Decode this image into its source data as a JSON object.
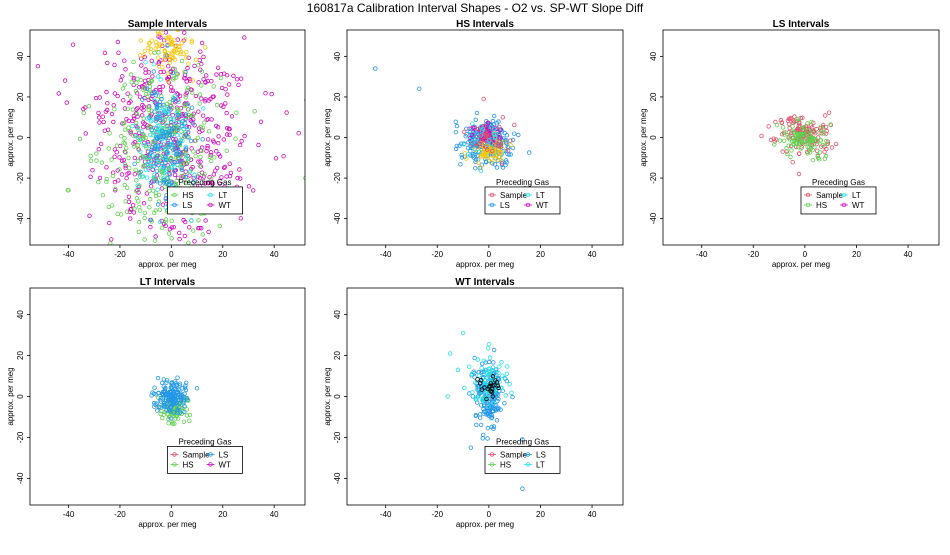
{
  "page_title": "160817a   Calibration Interval Shapes - O2 vs. SP-WT Slope Diff",
  "colors": {
    "Sample": "#df536b",
    "HS": "#61d04f",
    "LS": "#2297e6",
    "LT": "#28e2e5",
    "WT": "#cd0bbc",
    "yellow": "#f5c710",
    "black": "#000000"
  },
  "chart_data": [
    {
      "type": "scatter",
      "title": "Sample Intervals",
      "xlabel": "approx. per meg",
      "ylabel": "approx. per meg",
      "xlim": [
        -55,
        52
      ],
      "ylim": [
        -53,
        53
      ],
      "xticks": [
        "-40",
        "-20",
        "0",
        "20",
        "40"
      ],
      "yticks": [
        "-40",
        "-20",
        "0",
        "20",
        "40"
      ],
      "legend_title": "Preceding Gas",
      "legend": [
        "HS",
        "LT",
        "LS",
        "WT"
      ],
      "clouds": [
        {
          "series": "WT",
          "cx": 0,
          "cy": 0,
          "sx": 13,
          "sy": 24,
          "n": 450
        },
        {
          "series": "WT",
          "cx": 0,
          "cy": 0,
          "sx": 26,
          "sy": 26,
          "n": 90
        },
        {
          "series": "yellow",
          "cx": -1,
          "cy": 45,
          "sx": 5,
          "sy": 7,
          "n": 90
        },
        {
          "series": "HS",
          "cx": -3,
          "cy": -8,
          "sx": 9,
          "sy": 22,
          "n": 300
        },
        {
          "series": "HS",
          "cx": 0,
          "cy": -5,
          "sx": 24,
          "sy": 24,
          "n": 40
        },
        {
          "series": "LT",
          "cx": -3,
          "cy": 0,
          "sx": 5,
          "sy": 16,
          "n": 140
        },
        {
          "series": "LS",
          "cx": -2,
          "cy": -2,
          "sx": 5,
          "sy": 16,
          "n": 110
        }
      ]
    },
    {
      "type": "scatter",
      "title": "HS Intervals",
      "xlabel": "approx. per meg",
      "ylabel": "approx. per meg",
      "xlim": [
        -55,
        52
      ],
      "ylim": [
        -53,
        53
      ],
      "xticks": [
        "-40",
        "-20",
        "0",
        "20",
        "40"
      ],
      "yticks": [
        "-40",
        "-20",
        "0",
        "20",
        "40"
      ],
      "legend_title": "Preceding Gas",
      "legend": [
        "Sample",
        "LT",
        "LS",
        "WT"
      ],
      "clouds": [
        {
          "series": "LS",
          "cx": -1,
          "cy": -2,
          "sx": 5,
          "sy": 6,
          "n": 220
        },
        {
          "series": "WT",
          "cx": -1,
          "cy": 1,
          "sx": 3,
          "sy": 3,
          "n": 60
        },
        {
          "series": "yellow",
          "cx": 0,
          "cy": -7,
          "sx": 3,
          "sy": 3,
          "n": 60
        },
        {
          "series": "Sample",
          "cx": 0,
          "cy": 0,
          "sx": 5,
          "sy": 5,
          "n": 35
        },
        {
          "series": "LT",
          "cx": -2,
          "cy": 0,
          "sx": 4,
          "sy": 4,
          "n": 25
        }
      ],
      "points": [
        {
          "series": "LS",
          "x": -44,
          "y": 34
        },
        {
          "series": "LS",
          "x": -27,
          "y": 24
        },
        {
          "series": "LS",
          "x": 14,
          "y": -25
        },
        {
          "series": "Sample",
          "x": -2,
          "y": 19
        }
      ]
    },
    {
      "type": "scatter",
      "title": "LS Intervals",
      "xlabel": "approx. per meg",
      "ylabel": "approx. per meg",
      "xlim": [
        -55,
        52
      ],
      "ylim": [
        -53,
        53
      ],
      "xticks": [
        "-40",
        "-20",
        "0",
        "20",
        "40"
      ],
      "yticks": [
        "-40",
        "-20",
        "0",
        "20",
        "40"
      ],
      "legend_title": "Preceding Gas",
      "legend": [
        "Sample",
        "LT",
        "HS",
        "WT"
      ],
      "clouds": [
        {
          "series": "Sample",
          "cx": 0,
          "cy": 2,
          "sx": 6,
          "sy": 5,
          "n": 130
        },
        {
          "series": "HS",
          "cx": 0,
          "cy": -1,
          "sx": 4,
          "sy": 4,
          "n": 100
        }
      ],
      "points": []
    },
    {
      "type": "scatter",
      "title": "LT Intervals",
      "xlabel": "approx. per meg",
      "ylabel": "approx. per meg",
      "xlim": [
        -55,
        52
      ],
      "ylim": [
        -53,
        53
      ],
      "xticks": [
        "-40",
        "-20",
        "0",
        "20",
        "40"
      ],
      "yticks": [
        "-40",
        "-20",
        "0",
        "20",
        "40"
      ],
      "legend_title": "Preceding Gas",
      "legend": [
        "Sample",
        "LS",
        "HS",
        "WT"
      ],
      "clouds": [
        {
          "series": "HS",
          "cx": 1,
          "cy": -6,
          "sx": 2.5,
          "sy": 3.5,
          "n": 80
        },
        {
          "series": "LS",
          "cx": 0,
          "cy": 0,
          "sx": 3,
          "sy": 4,
          "n": 160
        }
      ],
      "points": []
    },
    {
      "type": "scatter",
      "title": "WT Intervals",
      "xlabel": "approx. per meg",
      "ylabel": "approx. per meg",
      "xlim": [
        -55,
        52
      ],
      "ylim": [
        -53,
        53
      ],
      "xticks": [
        "-40",
        "-20",
        "0",
        "20",
        "40"
      ],
      "yticks": [
        "-40",
        "-20",
        "0",
        "20",
        "40"
      ],
      "legend_title": "Preceding Gas",
      "legend": [
        "Sample",
        "LS",
        "HS",
        "LT"
      ],
      "clouds": [
        {
          "series": "LS",
          "cx": 0,
          "cy": 0,
          "sx": 3,
          "sy": 8,
          "n": 180
        },
        {
          "series": "LT",
          "cx": 0,
          "cy": 8,
          "sx": 4,
          "sy": 6,
          "n": 70
        },
        {
          "series": "black",
          "cx": 1,
          "cy": 5,
          "sx": 3,
          "sy": 2,
          "n": 22
        }
      ],
      "points": [
        {
          "series": "LT",
          "x": -10,
          "y": 31
        },
        {
          "series": "LT",
          "x": -15,
          "y": 21
        },
        {
          "series": "LT",
          "x": -12,
          "y": 13
        },
        {
          "series": "LT",
          "x": -16,
          "y": 0
        },
        {
          "series": "LS",
          "x": 13,
          "y": -21
        },
        {
          "series": "LS",
          "x": 13,
          "y": -45
        },
        {
          "series": "LS",
          "x": -7,
          "y": -25
        }
      ]
    }
  ]
}
